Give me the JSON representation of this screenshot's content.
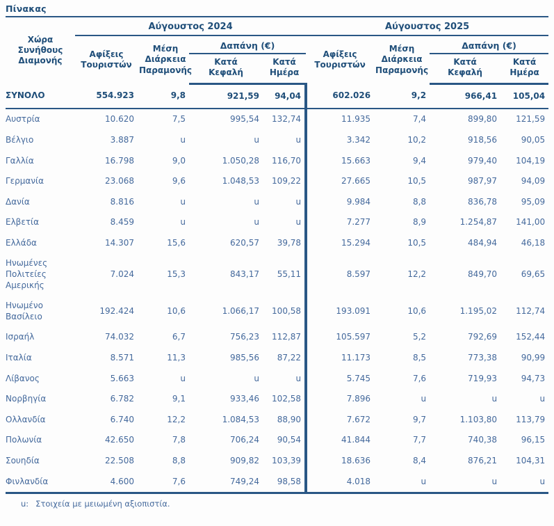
{
  "title": "Πίνακας",
  "colors": {
    "header_text": "#1f4e79",
    "body_text": "#44699c",
    "rule": "#2a5785"
  },
  "table": {
    "country_header": "Χώρα\nΣυνήθους\nΔιαμονής",
    "group_2024": "Αύγουστος 2024",
    "group_2025": "Αύγουστος 2025",
    "col_arrivals": "Αφίξεις\nΤουριστών",
    "col_stay": "Μέση\nΔιάρκεια\nΠαραμονής",
    "col_expenditure": "Δαπάνη (€)",
    "col_per_capita": "Κατά\nΚεφαλή",
    "col_per_day": "Κατά\nΗμέρα",
    "total_row": {
      "country": "ΣΥΝΟΛΟ",
      "values": [
        "554.923",
        "9,8",
        "921,59",
        "94,04",
        "602.026",
        "9,2",
        "966,41",
        "105,04"
      ]
    },
    "rows": [
      {
        "country": "Αυστρία",
        "values": [
          "10.620",
          "7,5",
          "995,54",
          "132,74",
          "11.935",
          "7,4",
          "899,80",
          "121,59"
        ]
      },
      {
        "country": "Βέλγιο",
        "values": [
          "3.887",
          "u",
          "u",
          "u",
          "3.342",
          "10,2",
          "918,56",
          "90,05"
        ]
      },
      {
        "country": "Γαλλία",
        "values": [
          "16.798",
          "9,0",
          "1.050,28",
          "116,70",
          "15.663",
          "9,4",
          "979,40",
          "104,19"
        ]
      },
      {
        "country": "Γερμανία",
        "values": [
          "23.068",
          "9,6",
          "1.048,53",
          "109,22",
          "27.665",
          "10,5",
          "987,97",
          "94,09"
        ]
      },
      {
        "country": "Δανία",
        "values": [
          "8.816",
          "u",
          "u",
          "u",
          "9.984",
          "8,8",
          "836,78",
          "95,09"
        ]
      },
      {
        "country": "Ελβετία",
        "values": [
          "8.459",
          "u",
          "u",
          "u",
          "7.277",
          "8,9",
          "1.254,87",
          "141,00"
        ]
      },
      {
        "country": "Ελλάδα",
        "values": [
          "14.307",
          "15,6",
          "620,57",
          "39,78",
          "15.294",
          "10,5",
          "484,94",
          "46,18"
        ]
      },
      {
        "country": "Ηνωμένες Πολιτείες Αμερικής",
        "values": [
          "7.024",
          "15,3",
          "843,17",
          "55,11",
          "8.597",
          "12,2",
          "849,70",
          "69,65"
        ]
      },
      {
        "country": "Ηνωμένο Βασίλειο",
        "values": [
          "192.424",
          "10,6",
          "1.066,17",
          "100,58",
          "193.091",
          "10,6",
          "1.195,02",
          "112,74"
        ]
      },
      {
        "country": "Ισραήλ",
        "values": [
          "74.032",
          "6,7",
          "756,23",
          "112,87",
          "105.597",
          "5,2",
          "792,69",
          "152,44"
        ]
      },
      {
        "country": "Ιταλία",
        "values": [
          "8.571",
          "11,3",
          "985,56",
          "87,22",
          "11.173",
          "8,5",
          "773,38",
          "90,99"
        ]
      },
      {
        "country": "Λίβανος",
        "values": [
          "5.663",
          "u",
          "u",
          "u",
          "5.745",
          "7,6",
          "719,93",
          "94,73"
        ]
      },
      {
        "country": "Νορβηγία",
        "values": [
          "6.782",
          "9,1",
          "933,46",
          "102,58",
          "7.896",
          "u",
          "u",
          "u"
        ]
      },
      {
        "country": "Ολλανδία",
        "values": [
          "6.740",
          "12,2",
          "1.084,53",
          "88,90",
          "7.672",
          "9,7",
          "1.103,80",
          "113,79"
        ]
      },
      {
        "country": "Πολωνία",
        "values": [
          "42.650",
          "7,8",
          "706,24",
          "90,54",
          "41.844",
          "7,7",
          "740,38",
          "96,15"
        ]
      },
      {
        "country": "Σουηδία",
        "values": [
          "22.508",
          "8,8",
          "909,82",
          "103,39",
          "18.636",
          "8,4",
          "876,21",
          "104,31"
        ]
      },
      {
        "country": "Φινλανδία",
        "values": [
          "4.600",
          "7,6",
          "749,24",
          "98,58",
          "4.018",
          "u",
          "u",
          "u"
        ]
      }
    ]
  },
  "footnote": {
    "symbol": "u:",
    "text": "Στοιχεία με μειωμένη αξιοπιστία."
  }
}
